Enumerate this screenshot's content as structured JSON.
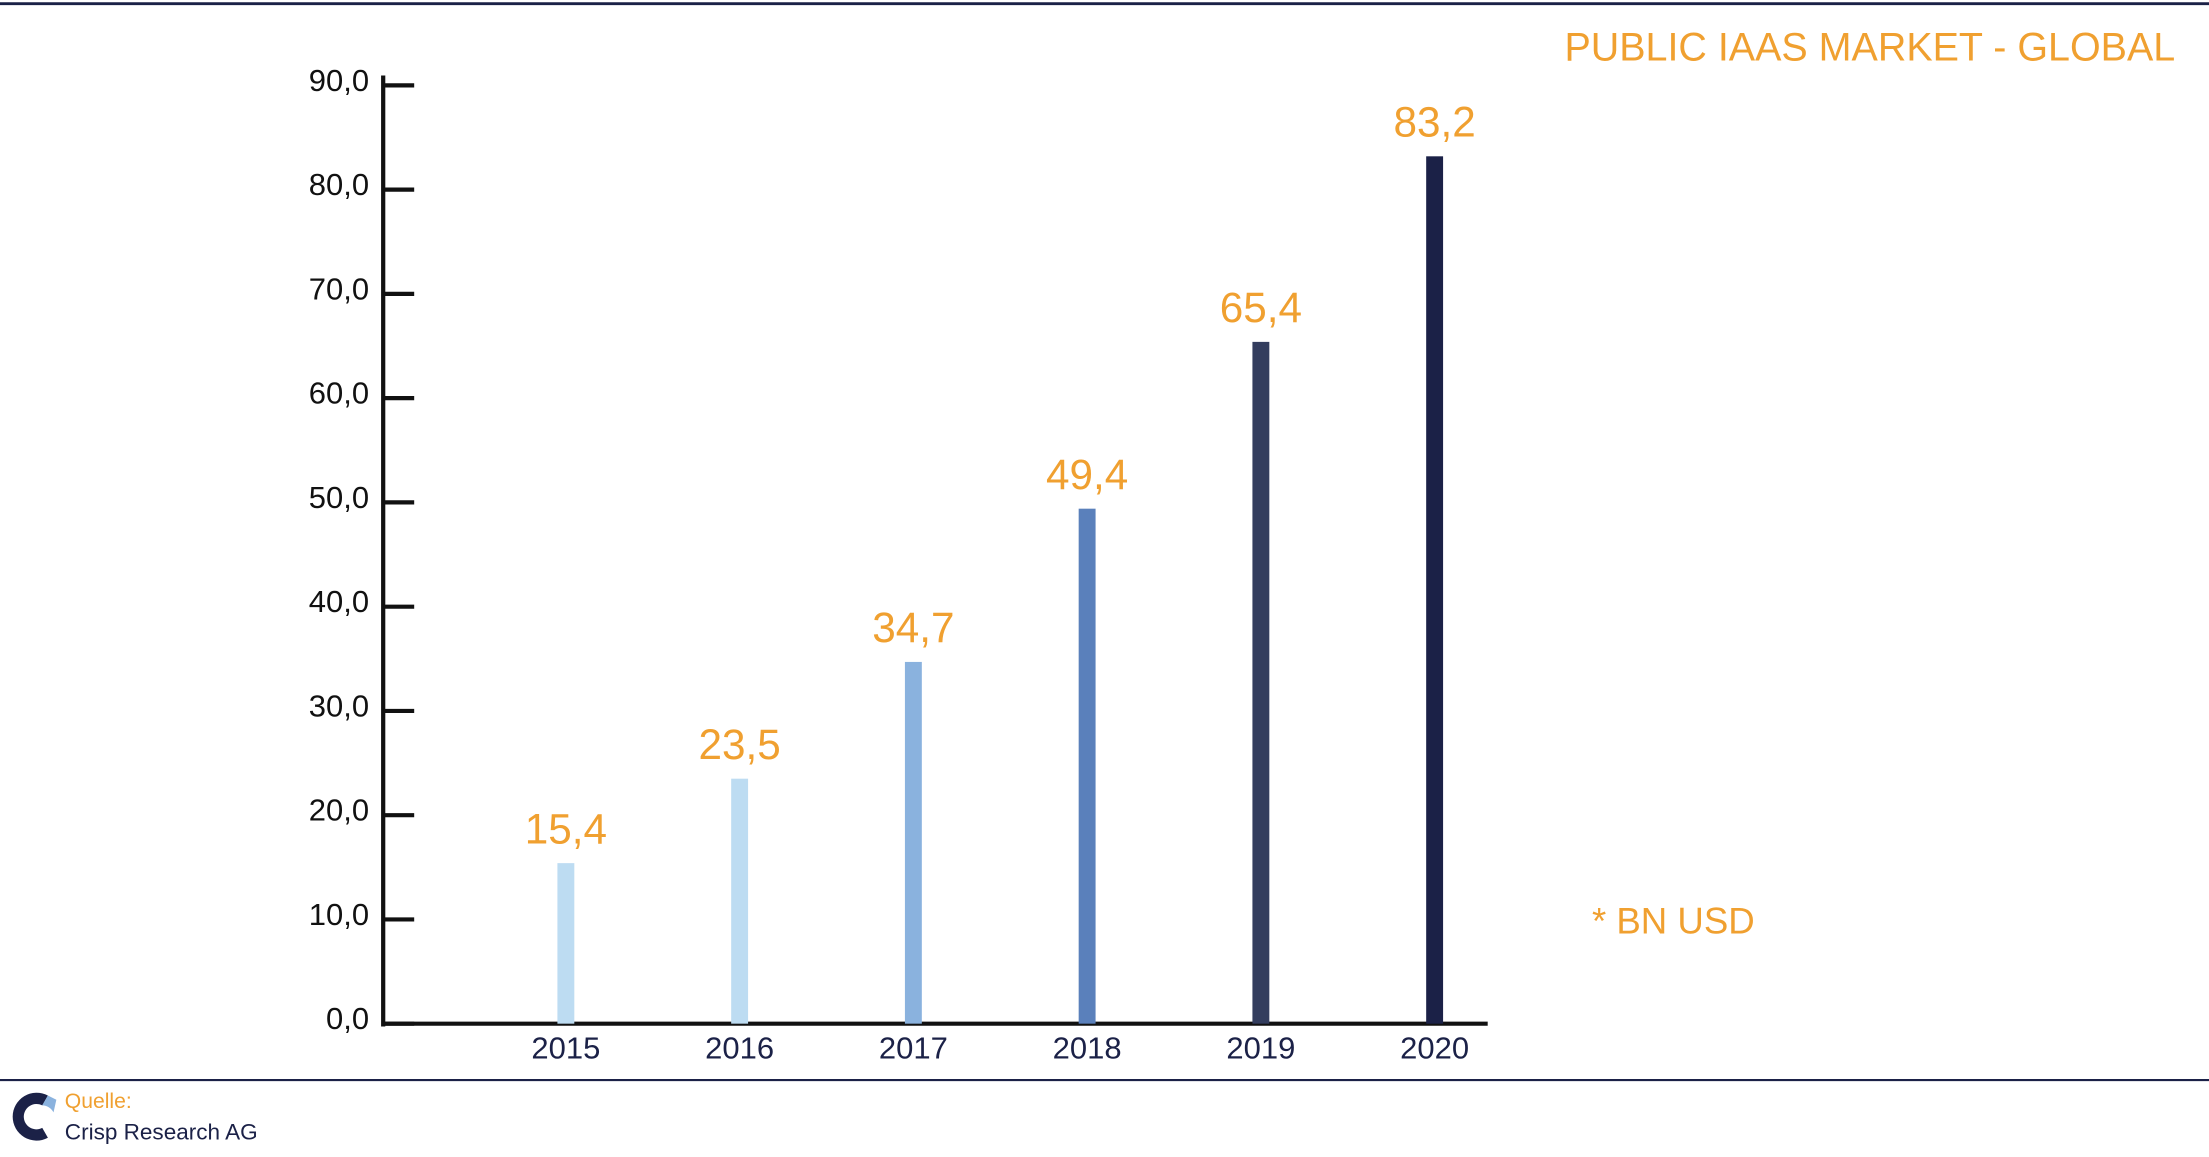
{
  "chart_data": {
    "type": "bar",
    "title": "PUBLIC IAAS MARKET - GLOBAL",
    "annotation": "* BN USD",
    "source_label": "Quelle:",
    "source": "Crisp Research AG",
    "categories": [
      "2015",
      "2016",
      "2017",
      "2018",
      "2019",
      "2020"
    ],
    "values": [
      15.4,
      23.5,
      34.7,
      49.4,
      65.4,
      83.2
    ],
    "value_labels": [
      "15,4",
      "23,5",
      "34,7",
      "49,4",
      "65,4",
      "83,2"
    ],
    "colors": [
      "#bddcf2",
      "#bddcf2",
      "#8ab2de",
      "#5a80bb",
      "#333d5e",
      "#1b2147"
    ],
    "ylim": [
      0,
      90
    ],
    "yticks": [
      {
        "value": 0,
        "label": "0,0"
      },
      {
        "value": 10,
        "label": "10,0"
      },
      {
        "value": 20,
        "label": "20,0"
      },
      {
        "value": 30,
        "label": "30,0"
      },
      {
        "value": 40,
        "label": "40,0"
      },
      {
        "value": 50,
        "label": "50,0"
      },
      {
        "value": 60,
        "label": "60,0"
      },
      {
        "value": 70,
        "label": "70,0"
      },
      {
        "value": 80,
        "label": "80,0"
      },
      {
        "value": 90,
        "label": "90,0"
      }
    ],
    "grid": false
  }
}
